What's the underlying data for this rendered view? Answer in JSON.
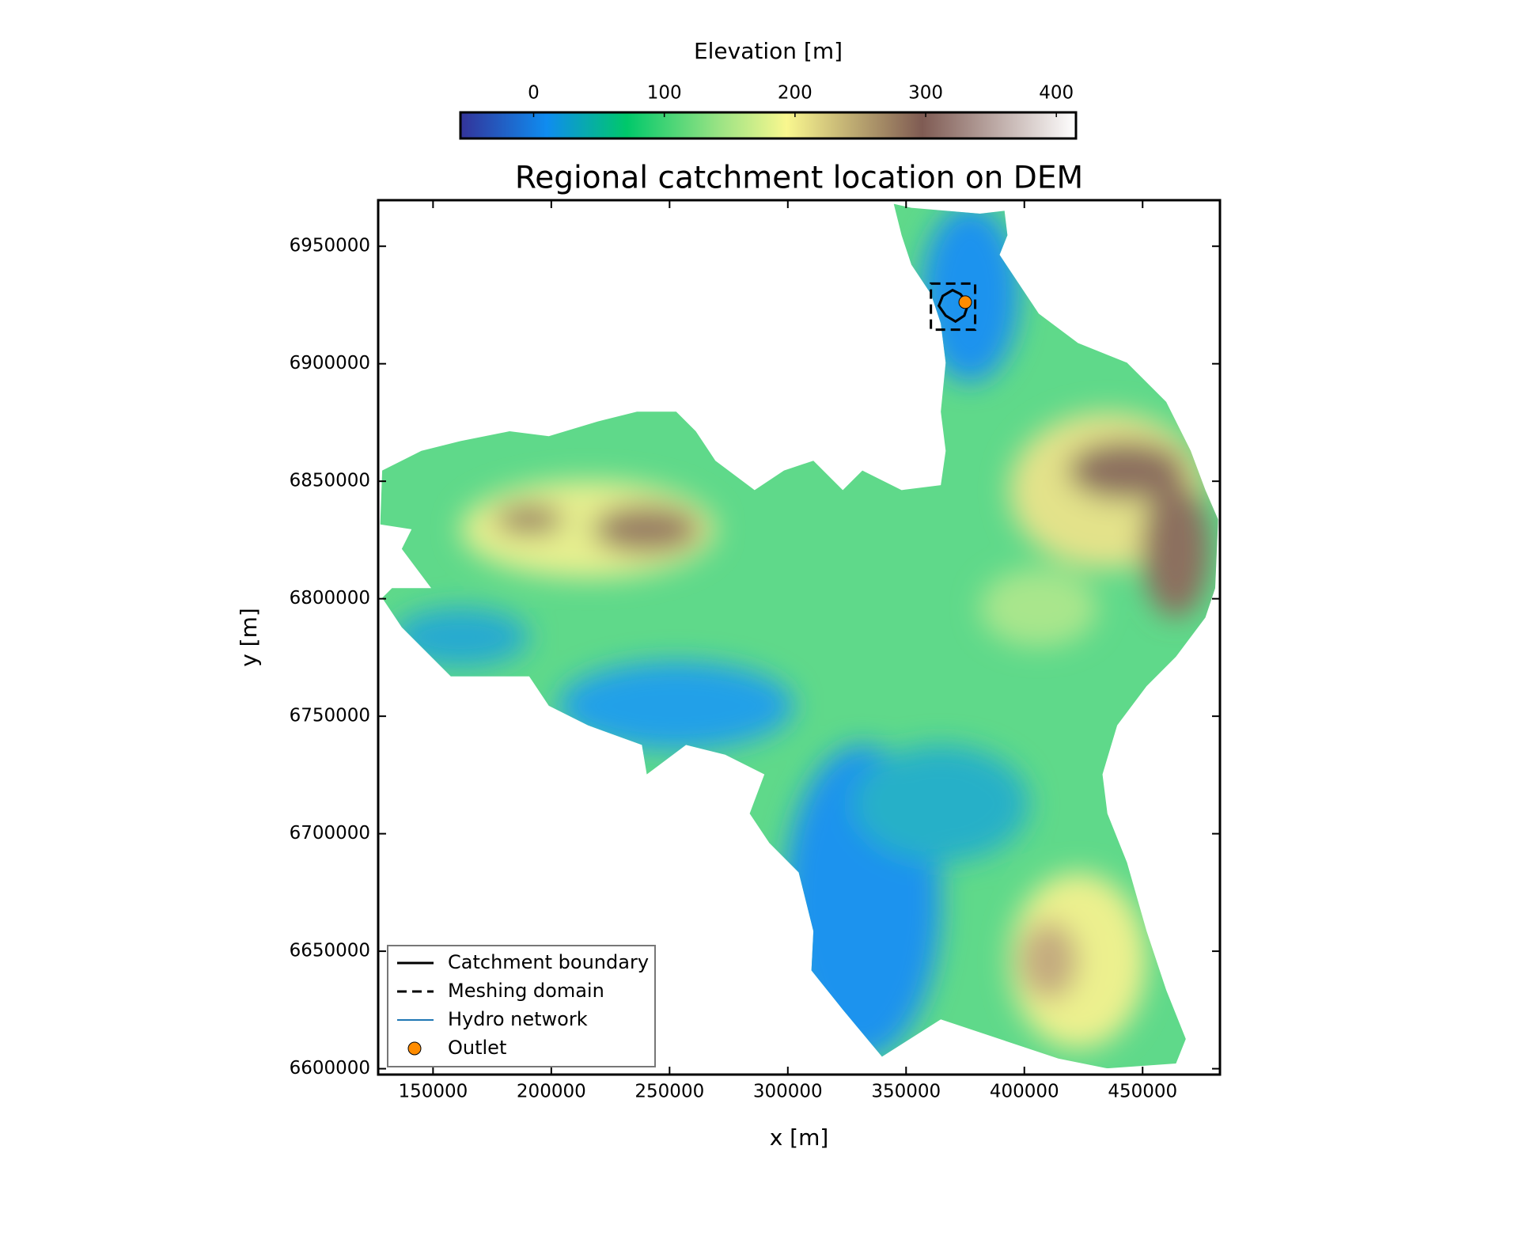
{
  "chart_data": {
    "type": "map",
    "title": "Regional catchment location on DEM",
    "xlabel": "x [m]",
    "ylabel": "y [m]",
    "xlim": [
      126800,
      482700
    ],
    "ylim": [
      6597500,
      6969600
    ],
    "xticks": [
      150000,
      200000,
      250000,
      300000,
      350000,
      400000,
      450000
    ],
    "yticks": [
      6600000,
      6650000,
      6700000,
      6750000,
      6800000,
      6850000,
      6900000,
      6950000
    ],
    "colorbar": {
      "label": "Elevation [m]",
      "lim": [
        -56,
        415
      ],
      "ticks": [
        0,
        100,
        200,
        300,
        400
      ]
    },
    "legend": "lower left",
    "series": [
      {
        "name": "Catchment boundary",
        "color": "#000000"
      },
      {
        "name": "Meshing domain",
        "color": "#000000",
        "x": [
          360500,
          379200
        ],
        "y": [
          6914500,
          6934100
        ]
      },
      {
        "name": "Hydro network",
        "color": "#1f77b4"
      },
      {
        "name": "Outlet",
        "color": "#ff8c00",
        "x": [
          375000
        ],
        "y": [
          6926200
        ]
      }
    ]
  }
}
